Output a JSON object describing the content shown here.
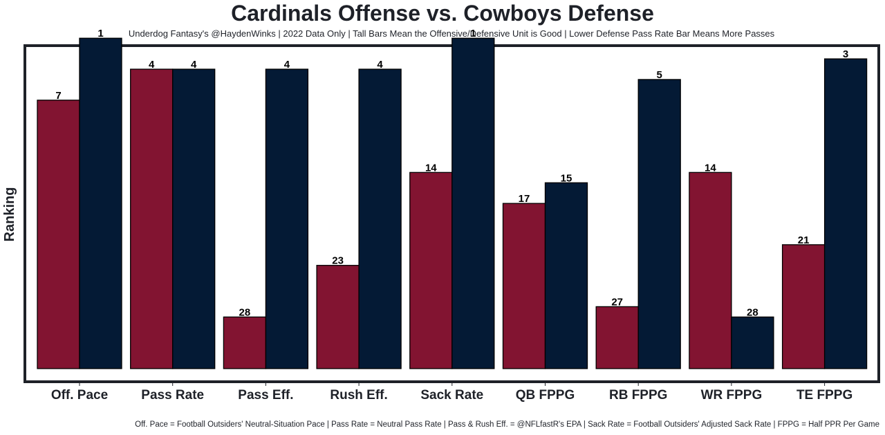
{
  "chart_data": {
    "type": "bar",
    "title": "Cardinals Offense vs. Cowboys Defense",
    "subtitle": "Underdog Fantasy's @HaydenWinks | 2022 Data Only | Tall Bars Mean the Offensive/Defensive Unit is Good | Lower Defense Pass Rate Bar Means More Passes",
    "footnote": "Off. Pace = Football Outsiders' Neutral-Situation Pace | Pass Rate = Neutral Pass Rate | Pass & Rush Eff. = @NFLfastR's EPA | Sack Rate = Football Outsiders' Adjusted Sack Rate | FPPG = Half PPR Per Game",
    "xlabel": "",
    "ylabel": "Ranking",
    "categories": [
      "Off. Pace",
      "Pass Rate",
      "Pass Eff.",
      "Rush Eff.",
      "Sack Rate",
      "QB FPPG",
      "RB FPPG",
      "WR FPPG",
      "TE FPPG"
    ],
    "series": [
      {
        "name": "Cardinals Offense",
        "color": "#821431",
        "values": [
          7,
          4,
          28,
          23,
          14,
          17,
          27,
          14,
          21
        ]
      },
      {
        "name": "Cowboys Defense",
        "color": "#041a35",
        "values": [
          1,
          4,
          4,
          4,
          1,
          15,
          5,
          28,
          3
        ]
      }
    ],
    "rank_scale": {
      "max_rank": 32,
      "bar_value_formula": "33 - rank"
    },
    "ylim": [
      0,
      32
    ],
    "grid": false,
    "legend": "none",
    "frame_color": "#1e2128"
  }
}
